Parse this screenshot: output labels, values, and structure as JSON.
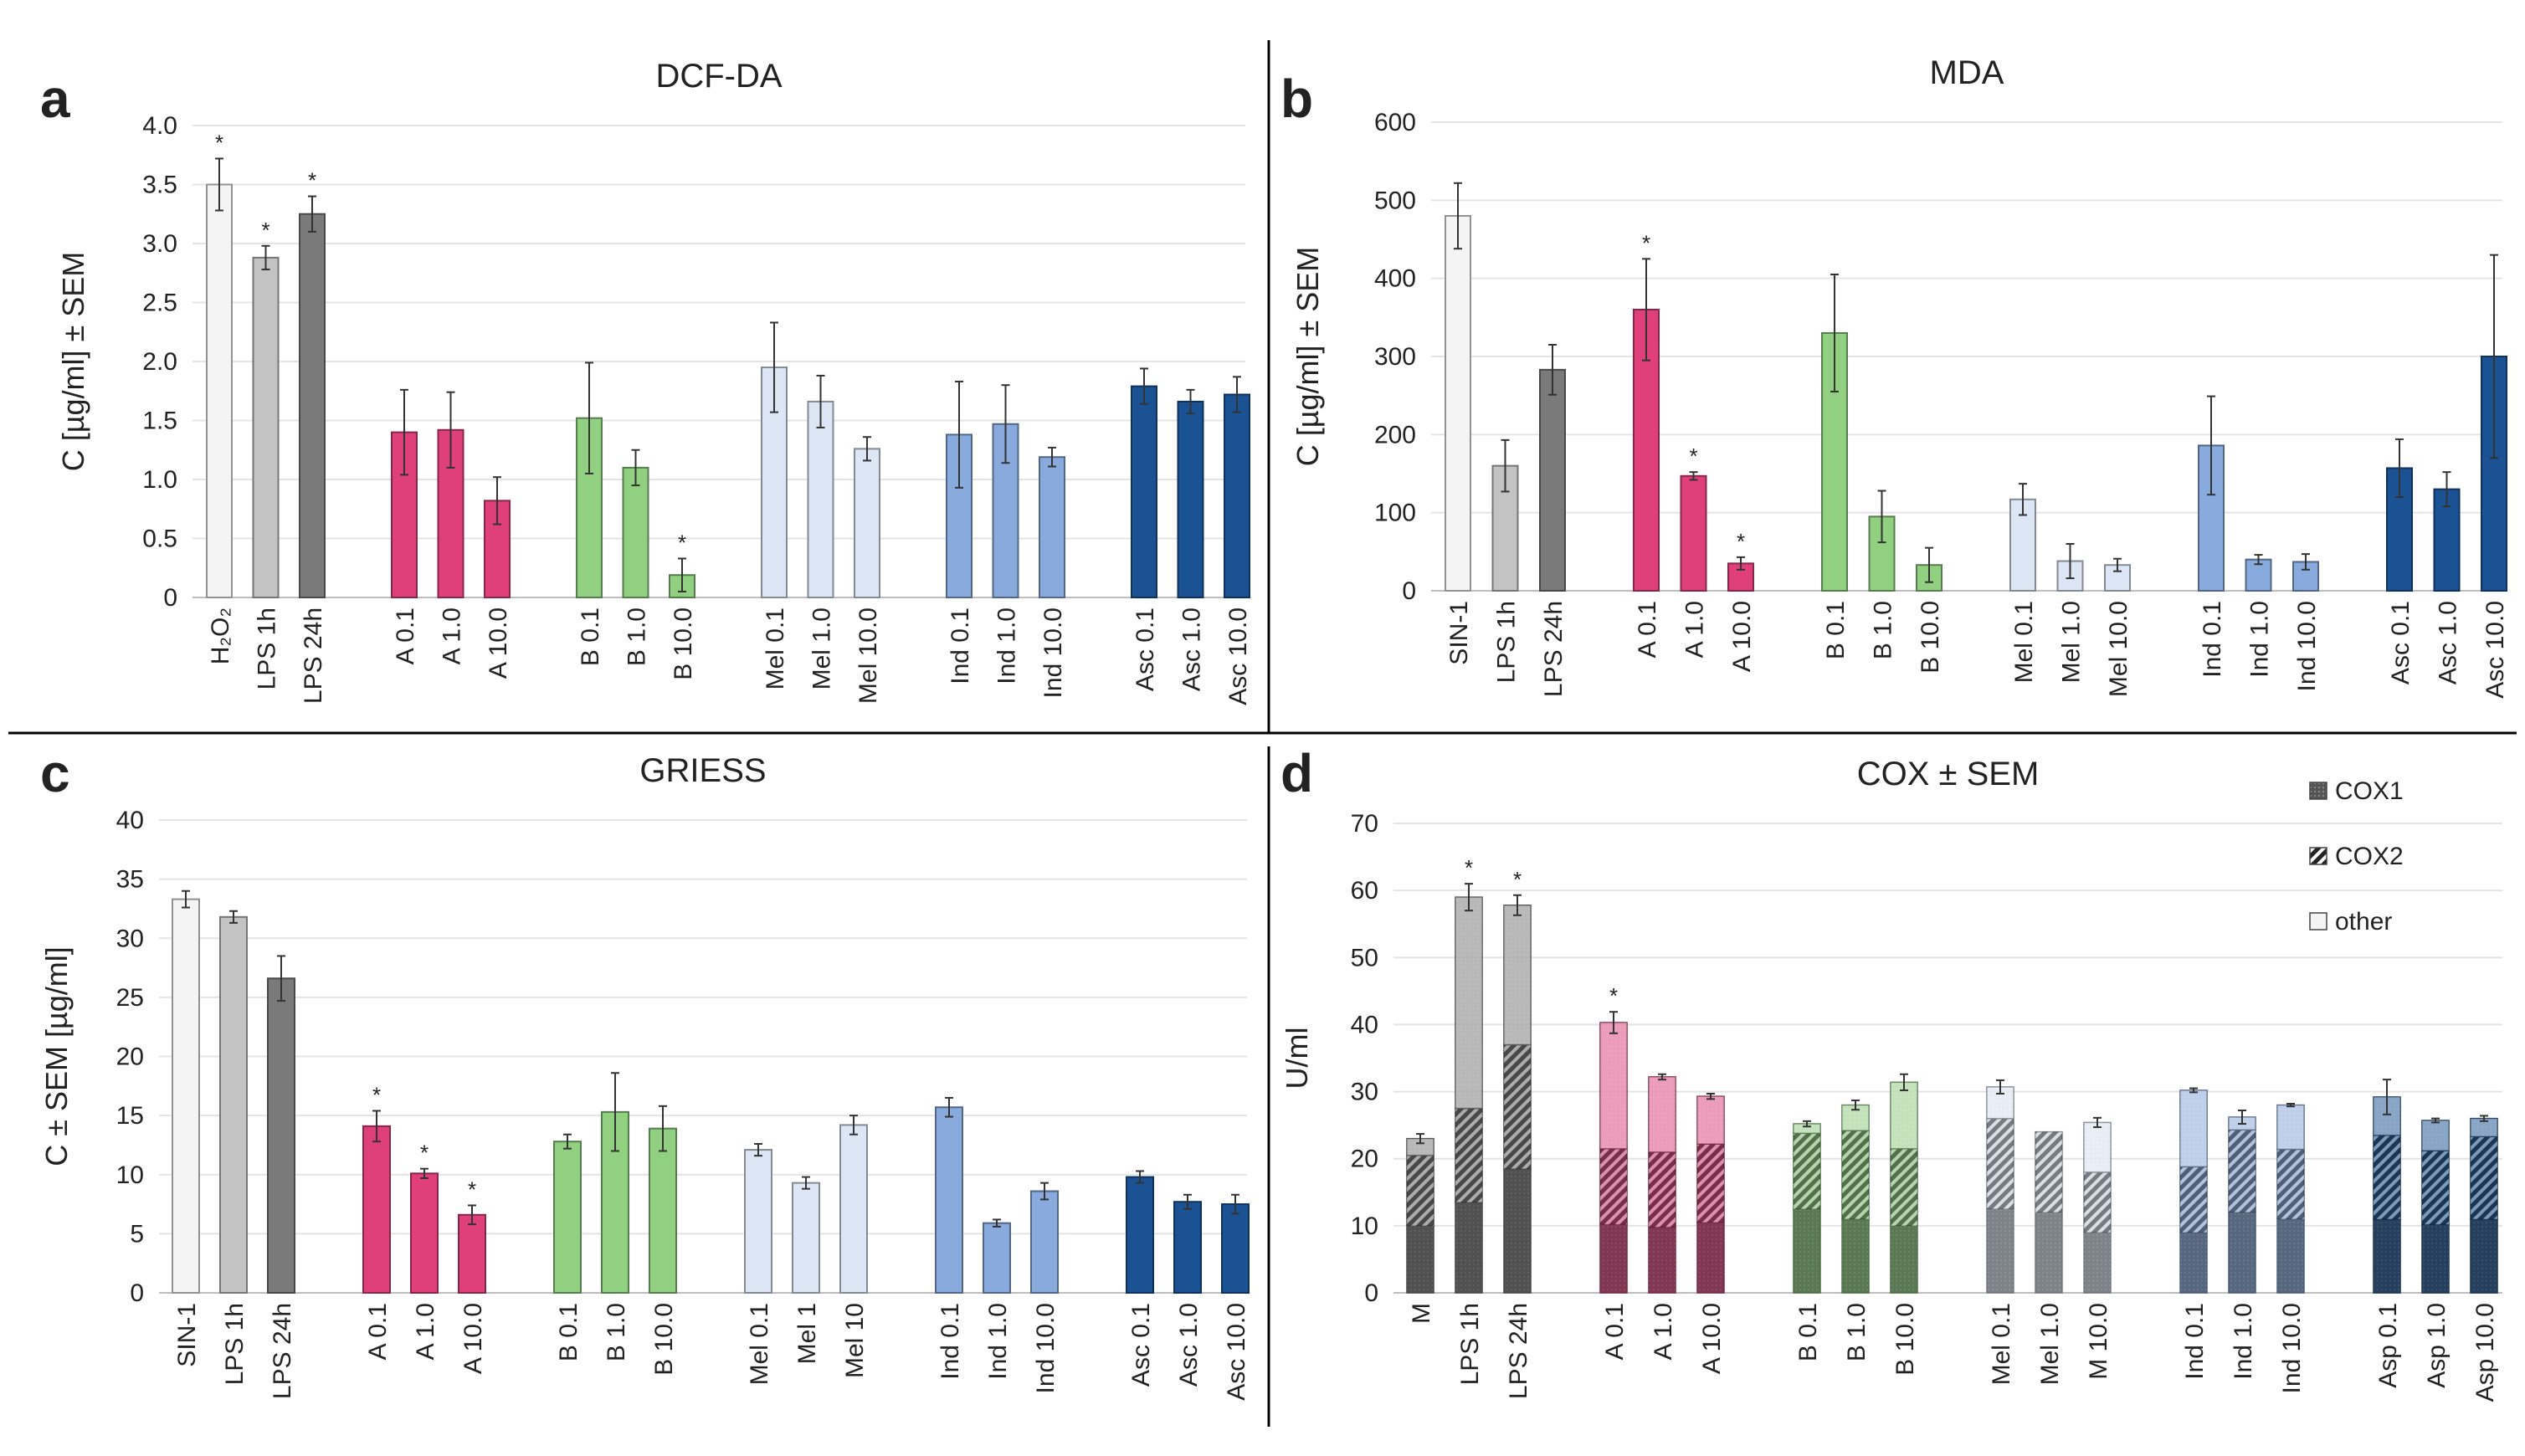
{
  "colors": {
    "white": "#f4f4f4",
    "lightgray": "#c3c3c3",
    "darkgray": "#7a7a7a",
    "pink": "#e0407a",
    "green": "#90d080",
    "palesky": "#dce6f5",
    "cornflower": "#88aadd",
    "navy": "#1a5294"
  },
  "chart_data": [
    {
      "panel": "a",
      "type": "bar",
      "title": "DCF-DA",
      "ylabel": "C [µg/ml] ± SEM",
      "ylim": [
        0,
        4
      ],
      "ystep": 0.5,
      "yticks": [
        "0",
        "0.5",
        "1.0",
        "1.5",
        "2.0",
        "2.5",
        "3.0",
        "3.5",
        "4.0"
      ],
      "categories": [
        "H₂O₂",
        "LPS 1h",
        "LPS 24h",
        "A 0.1",
        "A 1.0",
        "A 10.0",
        "B 0.1",
        "B 1.0",
        "B 10.0",
        "Mel 0.1",
        "Mel 1.0",
        "Mel 10.0",
        "Ind 0.1",
        "Ind 1.0",
        "Ind 10.0",
        "Asc 0.1",
        "Asc 1.0",
        "Asc 10.0"
      ],
      "values": [
        3.5,
        2.88,
        3.25,
        1.4,
        1.42,
        0.82,
        1.52,
        1.1,
        0.19,
        1.95,
        1.66,
        1.26,
        1.38,
        1.47,
        1.19,
        1.79,
        1.66,
        1.72
      ],
      "errors": [
        0.22,
        0.1,
        0.15,
        0.36,
        0.32,
        0.2,
        0.47,
        0.15,
        0.14,
        0.38,
        0.22,
        0.1,
        0.45,
        0.33,
        0.08,
        0.15,
        0.1,
        0.15
      ],
      "significant": [
        true,
        true,
        true,
        false,
        false,
        false,
        false,
        false,
        true,
        false,
        false,
        false,
        false,
        false,
        false,
        false,
        false,
        false
      ],
      "colors": [
        "white",
        "lightgray",
        "darkgray",
        "pink",
        "pink",
        "pink",
        "green",
        "green",
        "green",
        "palesky",
        "palesky",
        "palesky",
        "cornflower",
        "cornflower",
        "cornflower",
        "navy",
        "navy",
        "navy"
      ]
    },
    {
      "panel": "b",
      "type": "bar",
      "title": "MDA",
      "ylabel": "C [µg/ml] ± SEM",
      "ylim": [
        0,
        600
      ],
      "ystep": 100,
      "yticks": [
        "0",
        "100",
        "200",
        "300",
        "400",
        "500",
        "600"
      ],
      "categories": [
        "SIN-1",
        "LPS 1h",
        "LPS 24h",
        "A 0.1",
        "A 1.0",
        "A 10.0",
        "B 0.1",
        "B 1.0",
        "B 10.0",
        "Mel 0.1",
        "Mel 1.0",
        "Mel 10.0",
        "Ind 0.1",
        "Ind 1.0",
        "Ind 10.0",
        "Asc 0.1",
        "Asc 1.0",
        "Asc 10.0"
      ],
      "values": [
        480,
        160,
        283,
        360,
        147,
        35,
        330,
        95,
        33,
        117,
        38,
        33,
        186,
        40,
        37,
        157,
        130,
        300
      ],
      "errors": [
        42,
        33,
        32,
        65,
        5,
        8,
        75,
        33,
        22,
        20,
        22,
        8,
        63,
        6,
        10,
        37,
        22,
        130
      ],
      "significant": [
        false,
        false,
        false,
        true,
        true,
        true,
        false,
        false,
        false,
        false,
        false,
        false,
        false,
        false,
        false,
        false,
        false,
        false
      ],
      "colors": [
        "white",
        "lightgray",
        "darkgray",
        "pink",
        "pink",
        "pink",
        "green",
        "green",
        "green",
        "palesky",
        "palesky",
        "palesky",
        "cornflower",
        "cornflower",
        "cornflower",
        "navy",
        "navy",
        "navy"
      ]
    },
    {
      "panel": "c",
      "type": "bar",
      "title": "GRIESS",
      "ylabel": "C ± SEM [µg/ml]",
      "ylim": [
        0,
        40
      ],
      "ystep": 5,
      "yticks": [
        "0",
        "5",
        "10",
        "15",
        "20",
        "25",
        "30",
        "35",
        "40"
      ],
      "categories": [
        "SIN-1",
        "LPS 1h",
        "LPS 24h",
        "A 0.1",
        "A 1.0",
        "A 10.0",
        "B 0.1",
        "B 1.0",
        "B 10.0",
        "Mel 0.1",
        "Mel 1",
        "Mel 10",
        "Ind 0.1",
        "Ind 1.0",
        "Ind 10.0",
        "Asc 0.1",
        "Asc 1.0",
        "Asc 10.0"
      ],
      "values": [
        33.3,
        31.8,
        26.6,
        14.1,
        10.1,
        6.6,
        12.8,
        15.3,
        13.9,
        12.1,
        9.3,
        14.2,
        15.7,
        5.9,
        8.6,
        9.8,
        7.7,
        7.5
      ],
      "errors": [
        0.7,
        0.5,
        1.9,
        1.3,
        0.4,
        0.8,
        0.6,
        3.3,
        1.9,
        0.5,
        0.5,
        0.8,
        0.8,
        0.3,
        0.7,
        0.5,
        0.6,
        0.8
      ],
      "significant": [
        false,
        false,
        false,
        true,
        true,
        true,
        false,
        false,
        false,
        false,
        false,
        false,
        false,
        false,
        false,
        false,
        false,
        false
      ],
      "colors": [
        "white",
        "lightgray",
        "darkgray",
        "pink",
        "pink",
        "pink",
        "green",
        "green",
        "green",
        "palesky",
        "palesky",
        "palesky",
        "cornflower",
        "cornflower",
        "cornflower",
        "navy",
        "navy",
        "navy"
      ]
    },
    {
      "panel": "d",
      "type": "stacked-bar",
      "title": "COX ± SEM",
      "ylabel": "U/ml",
      "ylim": [
        0,
        70
      ],
      "ystep": 10,
      "yticks": [
        "0",
        "10",
        "20",
        "30",
        "40",
        "50",
        "60",
        "70"
      ],
      "categories": [
        "M",
        "LPS 1h",
        "LPS 24h",
        "A 0.1",
        "A 1.0",
        "A 10.0",
        "B 0.1",
        "B 1.0",
        "B 10.0",
        "Mel 0.1",
        "Mel 1.0",
        "M 10.0",
        "Ind 0.1",
        "Ind 1.0",
        "Ind 10.0",
        "Asp 0.1",
        "Asp 1.0",
        "Asp 10.0"
      ],
      "legend": [
        "COX1",
        "COX2",
        "other"
      ],
      "series": [
        {
          "name": "COX1",
          "values": [
            10,
            13.5,
            18.5,
            10.2,
            9.8,
            10.5,
            12.5,
            11,
            10,
            12.5,
            12,
            9,
            9,
            12,
            11,
            11,
            10.2,
            11
          ]
        },
        {
          "name": "COX2",
          "values": [
            10.5,
            14,
            18.5,
            11.3,
            11.2,
            11.7,
            11.3,
            13.2,
            11.5,
            13.5,
            12,
            9,
            9.8,
            12.3,
            10.4,
            12.5,
            11,
            12.3
          ]
        },
        {
          "name": "other",
          "values": [
            2.5,
            31.5,
            20.8,
            18.8,
            11.2,
            7.1,
            1.4,
            3.8,
            9.9,
            4.7,
            0,
            7.4,
            11.4,
            1.9,
            6.6,
            5.7,
            4.5,
            2.7
          ]
        }
      ],
      "errors": [
        0.7,
        2.0,
        1.5,
        1.6,
        0.4,
        0.4,
        0.4,
        0.7,
        1.2,
        1.0,
        0,
        0.7,
        0.3,
        1.0,
        0.2,
        2.6,
        0.3,
        0.4
      ],
      "significant": [
        false,
        true,
        true,
        true,
        false,
        false,
        false,
        false,
        false,
        false,
        false,
        false,
        false,
        false,
        false,
        false,
        false,
        false
      ],
      "colors": [
        "darkgray",
        "darkgray",
        "darkgray",
        "pink",
        "pink",
        "pink",
        "green",
        "green",
        "green",
        "palesky",
        "palesky",
        "palesky",
        "cornflower",
        "cornflower",
        "cornflower",
        "navy",
        "navy",
        "navy"
      ]
    }
  ]
}
